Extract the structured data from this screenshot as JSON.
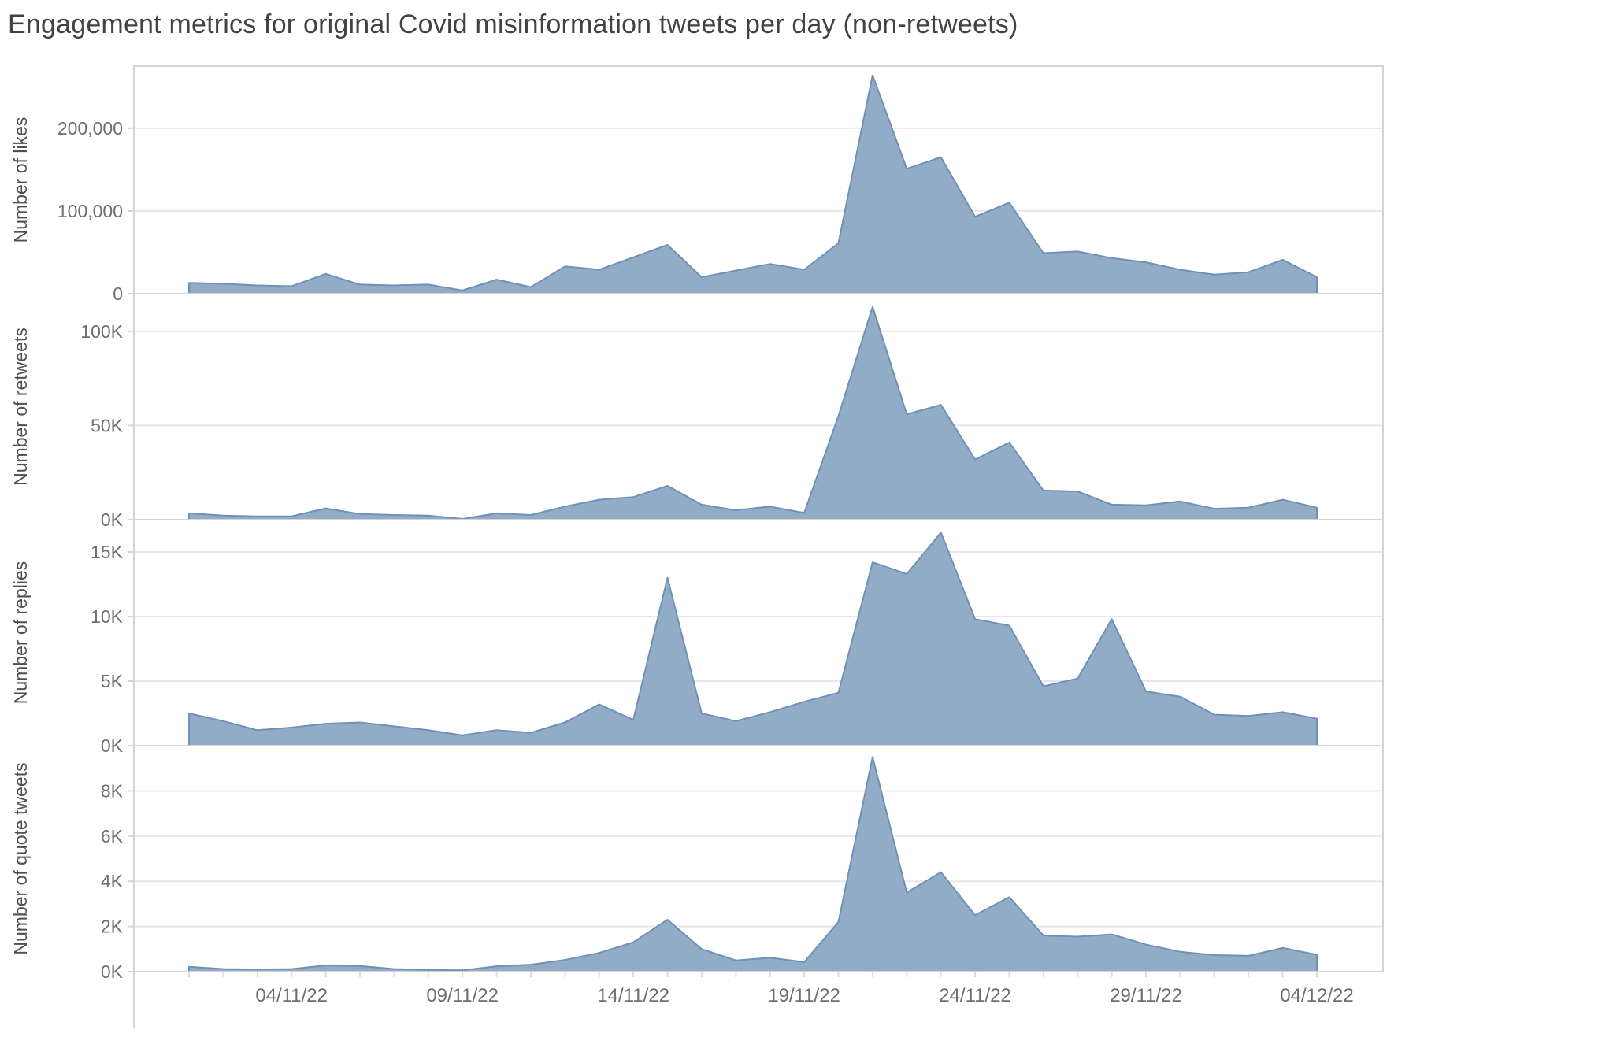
{
  "chart_data": {
    "type": "area",
    "title": "Engagement metrics for original Covid misinformation tweets per day (non-retweets)",
    "x": [
      "01/11/22",
      "02/11/22",
      "03/11/22",
      "04/11/22",
      "05/11/22",
      "06/11/22",
      "07/11/22",
      "08/11/22",
      "09/11/22",
      "10/11/22",
      "11/11/22",
      "12/11/22",
      "13/11/22",
      "14/11/22",
      "15/11/22",
      "16/11/22",
      "17/11/22",
      "18/11/22",
      "19/11/22",
      "20/11/22",
      "21/11/22",
      "22/11/22",
      "23/11/22",
      "24/11/22",
      "25/11/22",
      "26/11/22",
      "27/11/22",
      "28/11/22",
      "29/11/22",
      "30/11/22",
      "01/12/22",
      "02/12/22",
      "03/12/22",
      "04/12/22"
    ],
    "x_tick_labels": [
      "04/11/22",
      "09/11/22",
      "14/11/22",
      "19/11/22",
      "24/11/22",
      "29/11/22",
      "04/12/22"
    ],
    "x_tick_indices": [
      3,
      8,
      13,
      18,
      23,
      28,
      33
    ],
    "grid": true,
    "legend": "none",
    "panels": [
      {
        "name": "likes",
        "ylabel": "Number of likes",
        "ymax": 275000,
        "yticks": [
          {
            "v": 0,
            "label": "0"
          },
          {
            "v": 100000,
            "label": "100,000"
          },
          {
            "v": 200000,
            "label": "200,000"
          }
        ],
        "values": [
          13000,
          12000,
          10000,
          9000,
          24000,
          11000,
          10000,
          11000,
          4000,
          17000,
          8000,
          33000,
          29000,
          44000,
          59000,
          20000,
          28000,
          36000,
          29000,
          61000,
          264000,
          151000,
          165000,
          93000,
          110000,
          49000,
          51000,
          43000,
          38000,
          29000,
          23000,
          26000,
          41000,
          20000
        ]
      },
      {
        "name": "retweets",
        "ylabel": "Number of retweets",
        "ymax": 120000,
        "yticks": [
          {
            "v": 0,
            "label": "0K"
          },
          {
            "v": 50000,
            "label": "50K"
          },
          {
            "v": 100000,
            "label": "100K"
          }
        ],
        "values": [
          3400,
          2200,
          1800,
          1800,
          6000,
          3000,
          2500,
          2200,
          400,
          3400,
          2500,
          7000,
          10600,
          12000,
          18000,
          8000,
          5000,
          7000,
          3600,
          55000,
          113000,
          56000,
          61000,
          32000,
          41000,
          15500,
          15000,
          8000,
          7600,
          9700,
          5800,
          6400,
          10600,
          6400
        ]
      },
      {
        "name": "replies",
        "ylabel": "Number of replies",
        "ymax": 17500,
        "yticks": [
          {
            "v": 0,
            "label": "0K"
          },
          {
            "v": 5000,
            "label": "5K"
          },
          {
            "v": 10000,
            "label": "10K"
          },
          {
            "v": 15000,
            "label": "15K"
          }
        ],
        "values": [
          2500,
          1900,
          1200,
          1400,
          1700,
          1800,
          1500,
          1200,
          800,
          1200,
          1000,
          1800,
          3200,
          2000,
          13000,
          2500,
          1900,
          2600,
          3400,
          4100,
          14200,
          13300,
          16500,
          9800,
          9300,
          4600,
          5200,
          9800,
          4200,
          3800,
          2400,
          2300,
          2600,
          2100
        ]
      },
      {
        "name": "quote-tweets",
        "ylabel": "Number of quote tweets",
        "ymax": 10000,
        "yticks": [
          {
            "v": 0,
            "label": "0K"
          },
          {
            "v": 2000,
            "label": "2K"
          },
          {
            "v": 4000,
            "label": "4K"
          },
          {
            "v": 6000,
            "label": "6K"
          },
          {
            "v": 8000,
            "label": "8K"
          }
        ],
        "values": [
          220,
          120,
          100,
          120,
          280,
          250,
          120,
          80,
          60,
          240,
          310,
          520,
          830,
          1300,
          2300,
          1000,
          500,
          620,
          420,
          2200,
          9500,
          3500,
          4400,
          2500,
          3300,
          1600,
          1550,
          1650,
          1200,
          880,
          730,
          700,
          1050,
          750
        ]
      }
    ],
    "colors": {
      "area_fill": "#92ACC8",
      "area_stroke": "#6E91B6",
      "gridline": "#E7E7E7",
      "panel_border": "#D4D4D4",
      "title_text": "#424242",
      "axis_title_text": "#4F4F4F",
      "tick_text": "#6E6E6E"
    }
  }
}
